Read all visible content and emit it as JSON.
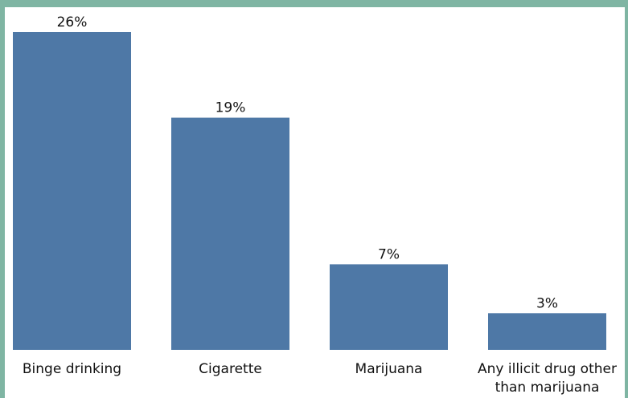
{
  "chart_data": {
    "type": "bar",
    "title": "",
    "xlabel": "",
    "ylabel": "",
    "categories": [
      [
        "Binge drinking"
      ],
      [
        "Cigarette"
      ],
      [
        "Marijuana"
      ],
      [
        "Any illicit drug other",
        "than marijuana"
      ]
    ],
    "values": [
      26,
      19,
      7,
      3
    ],
    "value_labels": [
      "26%",
      "19%",
      "7%",
      "3%"
    ],
    "ylim": [
      0,
      26
    ],
    "grid": false,
    "legend": "none",
    "bar_color": "#4e78a6",
    "frame_color": "#7fb5a3"
  }
}
